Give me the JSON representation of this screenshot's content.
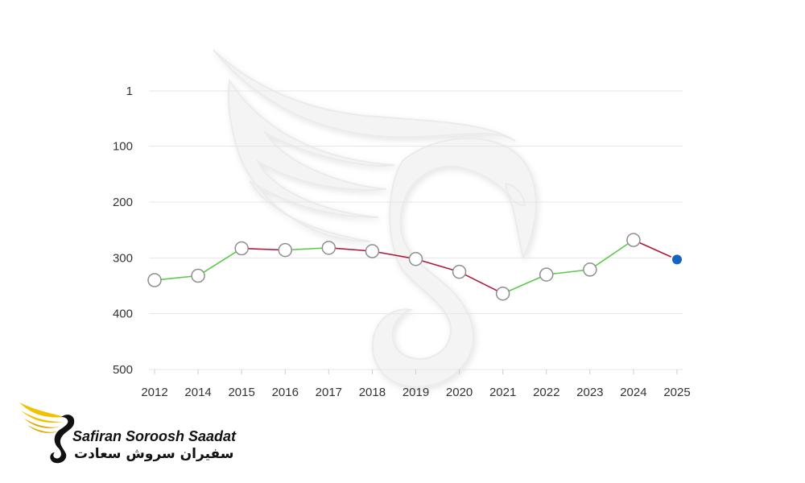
{
  "colors": {
    "rise": "#5cc94b",
    "fall": "#b0183a",
    "marker_fill": "#ffffff",
    "marker_stroke": "#8e8e8e",
    "last_marker": "#1565c0",
    "grid": "#e6e6e6",
    "watermark": "#f2f2f2"
  },
  "chart_data": {
    "type": "line",
    "title": "",
    "xlabel": "",
    "ylabel": "",
    "y_inverted": true,
    "ylim": [
      1,
      500
    ],
    "yticks": [
      1,
      100,
      200,
      300,
      400,
      500
    ],
    "categories": [
      "2012",
      "2014",
      "2015",
      "2016",
      "2017",
      "2018",
      "2019",
      "2020",
      "2021",
      "2022",
      "2023",
      "2024",
      "2025"
    ],
    "series": [
      {
        "values": [
          340,
          332,
          283,
          286,
          282,
          288,
          302,
          325,
          364,
          330,
          321,
          268,
          303
        ]
      }
    ],
    "segment_coloring": "green where rank improves, red where it declines",
    "grid": true,
    "legend": "none"
  },
  "logo": {
    "name_en": "Safiran Soroosh Saadat",
    "name_fa": "سفیران سروش سعادت",
    "icon": "winged-swan-logo-icon"
  }
}
